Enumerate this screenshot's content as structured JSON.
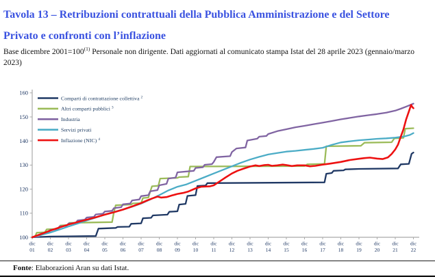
{
  "title": "Tavola 13 – Retribuzioni contrattuali della Pubblica Amministrazione e del Settore Privato e confronti con l’inflazione",
  "subtitle": {
    "base": "Base dicembre 2001=100",
    "sup": "(1)",
    "rest": " Personale non dirigente. Dati aggiornati al comunicato stampa Istat del 28 aprile 2023 (gennaio/marzo 2023)"
  },
  "footer": {
    "label": "Fonte",
    "rest": ": Elaborazioni Aran su dati Istat."
  },
  "chart_data": {
    "type": "line",
    "title": "",
    "xlabel": "",
    "ylabel": "",
    "x_unit": "years after dic 2001 (t=0 is dic 01, t=21 is dic 22)",
    "x_tick_month": "dic",
    "x_tick_years": [
      "01",
      "02",
      "03",
      "04",
      "05",
      "06",
      "07",
      "08",
      "09",
      "10",
      "11",
      "12",
      "13",
      "14",
      "15",
      "16",
      "17",
      "18",
      "19",
      "20",
      "21",
      "22"
    ],
    "y_ticks": [
      100,
      110,
      120,
      130,
      140,
      150,
      160
    ],
    "ylim": [
      100,
      160
    ],
    "grid": false,
    "legend_position": "top-left-inside",
    "axis_color": "#a9a9a9",
    "tick_label_color": "#1F3864",
    "legend_text_color": "#17365D",
    "series": [
      {
        "name": "Comparti di contrattazione collettiva",
        "sup": "2",
        "color": "#1F3864",
        "points": [
          [
            0,
            100
          ],
          [
            1,
            100.3
          ],
          [
            2,
            100.4
          ],
          [
            3.5,
            100.5
          ],
          [
            3.65,
            103.6
          ],
          [
            4.6,
            103.9
          ],
          [
            4.7,
            104.3
          ],
          [
            5.35,
            104.4
          ],
          [
            5.45,
            105.6
          ],
          [
            6.0,
            105.8
          ],
          [
            6.1,
            107.9
          ],
          [
            6.55,
            108.1
          ],
          [
            6.65,
            109.1
          ],
          [
            7.45,
            109.4
          ],
          [
            7.55,
            110.6
          ],
          [
            8.0,
            110.8
          ],
          [
            8.1,
            113.6
          ],
          [
            8.45,
            113.9
          ],
          [
            8.55,
            117.2
          ],
          [
            9.0,
            117.5
          ],
          [
            9.1,
            121.3
          ],
          [
            9.55,
            121.5
          ],
          [
            9.65,
            122.5
          ],
          [
            16.1,
            122.8
          ],
          [
            16.2,
            126.4
          ],
          [
            16.5,
            126.7
          ],
          [
            16.6,
            127.6
          ],
          [
            17.15,
            127.8
          ],
          [
            17.25,
            128.2
          ],
          [
            18.0,
            128.4
          ],
          [
            20.15,
            128.6
          ],
          [
            20.3,
            130.3
          ],
          [
            20.75,
            130.5
          ],
          [
            20.9,
            134.7
          ],
          [
            21,
            135.2
          ]
        ]
      },
      {
        "name": "Altri comparti pubblici",
        "sup": "3",
        "color": "#9BBB59",
        "points": [
          [
            0,
            100
          ],
          [
            0.15,
            100.2
          ],
          [
            0.25,
            101.9
          ],
          [
            0.7,
            102.1
          ],
          [
            0.8,
            103.3
          ],
          [
            1.45,
            103.5
          ],
          [
            1.55,
            104.9
          ],
          [
            1.95,
            105.1
          ],
          [
            2.05,
            106.0
          ],
          [
            4.4,
            106.3
          ],
          [
            4.5,
            110.5
          ],
          [
            4.6,
            113.3
          ],
          [
            5.45,
            113.6
          ],
          [
            5.55,
            114.1
          ],
          [
            6.0,
            114.2
          ],
          [
            6.1,
            116.3
          ],
          [
            6.4,
            116.5
          ],
          [
            6.5,
            119.0
          ],
          [
            6.6,
            121.2
          ],
          [
            6.95,
            121.4
          ],
          [
            7.05,
            124.4
          ],
          [
            8.0,
            124.7
          ],
          [
            8.1,
            125.0
          ],
          [
            8.6,
            125.2
          ],
          [
            8.7,
            129.4
          ],
          [
            15.0,
            129.6
          ],
          [
            15.15,
            130.3
          ],
          [
            16.1,
            130.5
          ],
          [
            16.2,
            137.8
          ],
          [
            18.1,
            138.0
          ],
          [
            18.3,
            139.3
          ],
          [
            19.8,
            139.5
          ],
          [
            19.95,
            141.1
          ],
          [
            20.45,
            141.3
          ],
          [
            20.55,
            145.1
          ],
          [
            21,
            145.3
          ]
        ]
      },
      {
        "name": "Industria",
        "sup": "",
        "color": "#8064A2",
        "points": [
          [
            0,
            100
          ],
          [
            0.4,
            100.4
          ],
          [
            0.5,
            101.6
          ],
          [
            0.9,
            101.9
          ],
          [
            1.0,
            103.1
          ],
          [
            1.4,
            103.4
          ],
          [
            1.5,
            104.5
          ],
          [
            1.9,
            104.8
          ],
          [
            2.0,
            105.7
          ],
          [
            2.4,
            106.0
          ],
          [
            2.5,
            107.0
          ],
          [
            2.9,
            107.3
          ],
          [
            3.0,
            108.2
          ],
          [
            3.4,
            108.5
          ],
          [
            3.5,
            109.5
          ],
          [
            3.9,
            109.8
          ],
          [
            4.0,
            110.7
          ],
          [
            4.4,
            111.0
          ],
          [
            4.5,
            112.1
          ],
          [
            4.9,
            112.5
          ],
          [
            5.0,
            113.7
          ],
          [
            5.4,
            114.0
          ],
          [
            5.5,
            115.3
          ],
          [
            5.9,
            115.7
          ],
          [
            6.0,
            117.1
          ],
          [
            6.4,
            117.5
          ],
          [
            6.5,
            119.1
          ],
          [
            6.9,
            119.6
          ],
          [
            7.0,
            121.6
          ],
          [
            7.4,
            122.2
          ],
          [
            7.5,
            124.4
          ],
          [
            7.9,
            124.8
          ],
          [
            8.0,
            127.0
          ],
          [
            8.9,
            127.6
          ],
          [
            9.0,
            128.8
          ],
          [
            9.4,
            129.1
          ],
          [
            9.5,
            130.1
          ],
          [
            9.9,
            130.4
          ],
          [
            10.0,
            131.3
          ],
          [
            10.15,
            133.3
          ],
          [
            10.9,
            133.7
          ],
          [
            11.0,
            135.4
          ],
          [
            11.25,
            136.9
          ],
          [
            11.75,
            137.3
          ],
          [
            11.85,
            140.2
          ],
          [
            12.4,
            141.0
          ],
          [
            12.5,
            141.8
          ],
          [
            12.9,
            142.1
          ],
          [
            13.0,
            142.9
          ],
          [
            13.5,
            144.1
          ],
          [
            14,
            144.9
          ],
          [
            14.5,
            145.7
          ],
          [
            15,
            146.3
          ],
          [
            15.5,
            147.0
          ],
          [
            16,
            147.6
          ],
          [
            16.5,
            148.3
          ],
          [
            17,
            149.0
          ],
          [
            17.5,
            149.6
          ],
          [
            18,
            150.2
          ],
          [
            18.5,
            150.7
          ],
          [
            19,
            151.2
          ],
          [
            19.5,
            151.8
          ],
          [
            20,
            152.6
          ],
          [
            20.3,
            153.4
          ],
          [
            20.6,
            154.3
          ],
          [
            21,
            155.5
          ]
        ]
      },
      {
        "name": "Servizi privati",
        "sup": "",
        "color": "#4BACC6",
        "points": [
          [
            0,
            100
          ],
          [
            0.5,
            101.0
          ],
          [
            1,
            102.0
          ],
          [
            1.5,
            103.2
          ],
          [
            2,
            104.5
          ],
          [
            2.5,
            105.7
          ],
          [
            3,
            107.0
          ],
          [
            3.5,
            108.2
          ],
          [
            4,
            109.5
          ],
          [
            4.5,
            110.5
          ],
          [
            5,
            111.5
          ],
          [
            5.5,
            112.7
          ],
          [
            6,
            114.0
          ],
          [
            6.5,
            115.7
          ],
          [
            7,
            117.5
          ],
          [
            7.5,
            119.5
          ],
          [
            8,
            121.0
          ],
          [
            8.5,
            122.0
          ],
          [
            9,
            123.5
          ],
          [
            9.5,
            125.0
          ],
          [
            10,
            126.5
          ],
          [
            10.5,
            128.0
          ],
          [
            11,
            129.5
          ],
          [
            11.5,
            131.0
          ],
          [
            12,
            132.3
          ],
          [
            12.5,
            133.4
          ],
          [
            13,
            134.4
          ],
          [
            13.5,
            135.0
          ],
          [
            14,
            135.6
          ],
          [
            14.5,
            135.9
          ],
          [
            15,
            136.3
          ],
          [
            15.5,
            136.7
          ],
          [
            16,
            137.2
          ],
          [
            16.5,
            138.4
          ],
          [
            17,
            139.4
          ],
          [
            17.5,
            139.9
          ],
          [
            18,
            140.3
          ],
          [
            18.5,
            140.6
          ],
          [
            19,
            140.9
          ],
          [
            19.5,
            141.1
          ],
          [
            20,
            141.4
          ],
          [
            20.5,
            141.9
          ],
          [
            20.8,
            142.5
          ],
          [
            21,
            143.3
          ]
        ]
      },
      {
        "name": "Inflazione (NIC)",
        "sup": "4",
        "color": "#ED1111",
        "points": [
          [
            0,
            100
          ],
          [
            0.5,
            101.4
          ],
          [
            1,
            102.8
          ],
          [
            1.5,
            104.1
          ],
          [
            2,
            105.3
          ],
          [
            2.5,
            106.3
          ],
          [
            3,
            107.3
          ],
          [
            3.5,
            108.3
          ],
          [
            4,
            109.4
          ],
          [
            4.5,
            110.4
          ],
          [
            5,
            111.5
          ],
          [
            5.5,
            112.8
          ],
          [
            6,
            114.2
          ],
          [
            6.3,
            115.2
          ],
          [
            6.6,
            116.1
          ],
          [
            6.9,
            116.9
          ],
          [
            7.1,
            116.5
          ],
          [
            7.4,
            116.7
          ],
          [
            7.7,
            117.4
          ],
          [
            8,
            118.0
          ],
          [
            8.3,
            118.4
          ],
          [
            8.6,
            119.0
          ],
          [
            9,
            120.3
          ],
          [
            9.3,
            121.0
          ],
          [
            9.6,
            121.1
          ],
          [
            9.8,
            121.2
          ],
          [
            10,
            121.6
          ],
          [
            10.3,
            123.1
          ],
          [
            10.6,
            124.6
          ],
          [
            11,
            126.5
          ],
          [
            11.3,
            127.6
          ],
          [
            11.6,
            128.4
          ],
          [
            12,
            129.4
          ],
          [
            12.3,
            129.9
          ],
          [
            12.5,
            129.6
          ],
          [
            12.8,
            130.0
          ],
          [
            13,
            130.1
          ],
          [
            13.2,
            129.7
          ],
          [
            13.5,
            129.9
          ],
          [
            13.8,
            130.2
          ],
          [
            14,
            130.0
          ],
          [
            14.3,
            129.6
          ],
          [
            14.6,
            129.9
          ],
          [
            15,
            129.9
          ],
          [
            15.3,
            129.5
          ],
          [
            15.6,
            129.7
          ],
          [
            16,
            130.2
          ],
          [
            16.4,
            130.6
          ],
          [
            17,
            131.3
          ],
          [
            17.5,
            132.1
          ],
          [
            18,
            132.6
          ],
          [
            18.3,
            132.9
          ],
          [
            18.6,
            133.1
          ],
          [
            19,
            132.7
          ],
          [
            19.3,
            132.5
          ],
          [
            19.6,
            133.2
          ],
          [
            19.8,
            134.6
          ],
          [
            20,
            136.5
          ],
          [
            20.15,
            138.5
          ],
          [
            20.3,
            141.8
          ],
          [
            20.45,
            144.8
          ],
          [
            20.6,
            149.0
          ],
          [
            20.75,
            152.3
          ],
          [
            20.87,
            155.0
          ],
          [
            20.93,
            154.2
          ],
          [
            21,
            153.6
          ]
        ]
      }
    ]
  }
}
